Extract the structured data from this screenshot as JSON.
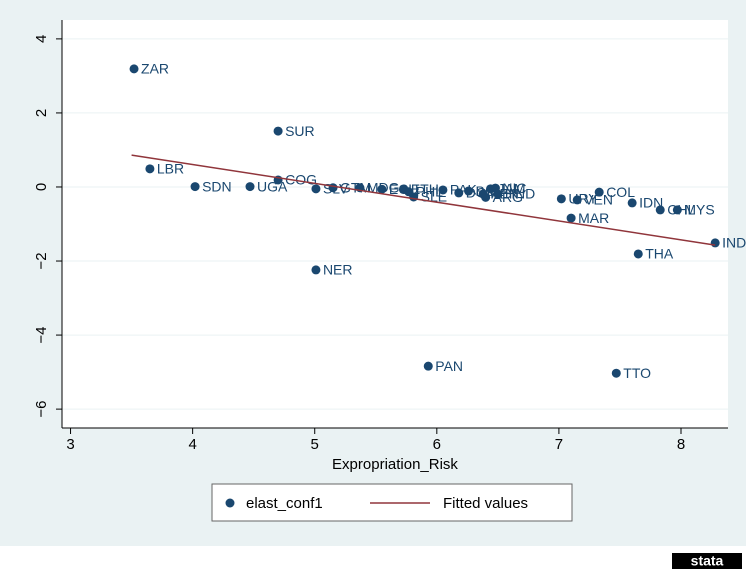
{
  "chart_data": {
    "type": "scatter",
    "x_label": "Expropriation_Risk",
    "xlim": [
      2.93,
      8.385
    ],
    "ylim": [
      -6.51,
      4.51
    ],
    "xticks": [
      3,
      4,
      5,
      6,
      7,
      8
    ],
    "yticks": [
      4,
      2,
      0,
      {
        "value": -2,
        "label": "−2"
      },
      {
        "value": -4,
        "label": "−4"
      },
      {
        "value": -6,
        "label": "−6"
      }
    ],
    "grid": true,
    "watermark": "stata",
    "series": [
      {
        "name": "elast_conf1",
        "type": "scatter",
        "color": "#1a476f",
        "point_labels": [
          "ZAR",
          "SUR",
          "LBR",
          "COG",
          "SDN",
          "UGA",
          "SLV",
          "NER",
          "GTM",
          "MDG",
          "ECU",
          "ETH",
          "PHL",
          "SLE",
          "PAK",
          "DOM",
          "BOL",
          "KEN",
          "ARG",
          "JAM",
          "NIC",
          "HND",
          "PAN",
          "URY",
          "VEN",
          "MAR",
          "COL",
          "IDN",
          "CHL",
          "MYS",
          "THA",
          "TTO",
          "IND"
        ],
        "x": [
          3.52,
          4.7,
          3.65,
          4.7,
          4.02,
          4.47,
          5.01,
          5.01,
          5.15,
          5.37,
          5.55,
          5.73,
          5.77,
          5.81,
          6.05,
          6.18,
          6.26,
          6.38,
          6.4,
          6.44,
          6.48,
          6.5,
          5.93,
          7.02,
          7.15,
          7.1,
          7.33,
          7.6,
          7.83,
          7.97,
          7.65,
          7.47,
          8.28
        ],
        "values": [
          3.19,
          1.51,
          0.49,
          0.19,
          0.01,
          0.01,
          -0.05,
          -2.24,
          -0.02,
          -0.02,
          -0.06,
          -0.06,
          -0.13,
          -0.27,
          -0.08,
          -0.16,
          -0.11,
          -0.19,
          -0.28,
          -0.05,
          -0.03,
          -0.19,
          -4.84,
          -0.32,
          -0.35,
          -0.84,
          -0.14,
          -0.43,
          -0.62,
          -0.62,
          -1.81,
          -5.03,
          -1.51
        ]
      },
      {
        "name": "Fitted values",
        "type": "line",
        "color": "#90353b",
        "x": [
          3.5,
          8.28
        ],
        "values": [
          0.86,
          -1.57
        ]
      }
    ]
  }
}
